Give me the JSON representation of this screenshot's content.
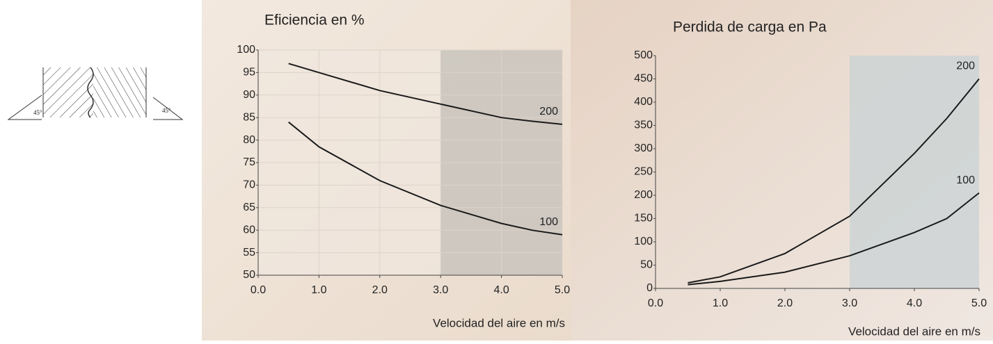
{
  "diagram": {
    "labels": [
      "45°",
      "45°"
    ]
  },
  "chart_data": [
    {
      "type": "line",
      "title": "Eficiencia en %",
      "x_label": "Velocidad del aire en m/s",
      "x": [
        0.5,
        1.0,
        2.0,
        3.0,
        4.0,
        4.5,
        5.0
      ],
      "series": [
        {
          "name": "200",
          "color": "#1a1a1a",
          "values": [
            97,
            95,
            91,
            88,
            85,
            84.2,
            83.5
          ]
        },
        {
          "name": "100",
          "color": "#1a1a1a",
          "values": [
            84,
            78.5,
            71,
            65.5,
            61.5,
            60,
            59
          ]
        }
      ],
      "xlim": [
        0,
        5
      ],
      "ylim": [
        50,
        100
      ],
      "xticks": [
        {
          "value": 0,
          "label": "0.0"
        },
        {
          "value": 1,
          "label": "1.0"
        },
        {
          "value": 2,
          "label": "2.0"
        },
        {
          "value": 3,
          "label": "3.0"
        },
        {
          "value": 4,
          "label": "4.0"
        },
        {
          "value": 5,
          "label": "5.0"
        }
      ],
      "yticks": [
        50,
        55,
        60,
        65,
        70,
        75,
        80,
        85,
        90,
        95,
        100
      ],
      "grid": true,
      "shaded_xrange": [
        3,
        5
      ]
    },
    {
      "type": "line",
      "title": "Perdida de carga en Pa",
      "x_label": "Velocidad del aire en m/s",
      "x": [
        0.5,
        1.0,
        2.0,
        3.0,
        4.0,
        4.5,
        5.0
      ],
      "series": [
        {
          "name": "200",
          "color": "#1a1a1a",
          "values": [
            12,
            25,
            75,
            155,
            290,
            365,
            450
          ]
        },
        {
          "name": "100",
          "color": "#1a1a1a",
          "values": [
            8,
            15,
            35,
            70,
            120,
            150,
            205
          ]
        }
      ],
      "xlim": [
        0,
        5
      ],
      "ylim": [
        0,
        500
      ],
      "xticks": [
        {
          "value": 0,
          "label": "0.0"
        },
        {
          "value": 1,
          "label": "1.0"
        },
        {
          "value": 2,
          "label": "2.0"
        },
        {
          "value": 3,
          "label": "3.0"
        },
        {
          "value": 4,
          "label": "4.0"
        },
        {
          "value": 5,
          "label": "5.0"
        }
      ],
      "yticks": [
        0,
        50,
        100,
        150,
        200,
        250,
        300,
        350,
        400,
        450,
        500
      ],
      "grid": false,
      "shaded_xrange": [
        3,
        5
      ]
    }
  ]
}
